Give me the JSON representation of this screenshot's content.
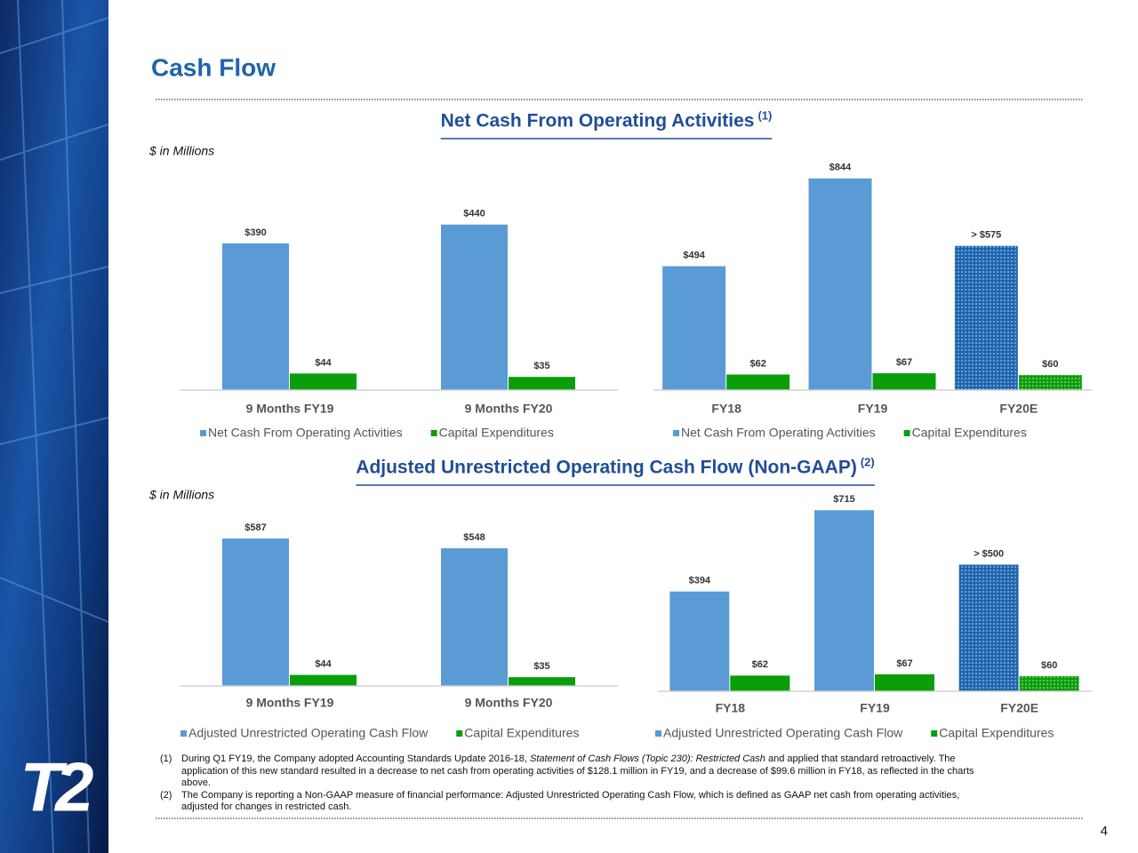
{
  "slide": {
    "title": "Cash Flow",
    "page": "4",
    "logo": "T2"
  },
  "sections": [
    {
      "heading": "Net Cash From Operating Activities",
      "note": "(1)",
      "unit": "$ in Millions"
    },
    {
      "heading": "Adjusted Unrestricted Operating Cash Flow (Non-GAAP)",
      "note": "(2)",
      "unit": "$ in Millions"
    }
  ],
  "footnotes": [
    {
      "marker": "(1)",
      "parts": [
        "During Q1 FY19, the Company adopted Accounting Standards Update 2016-18, ",
        "Statement of Cash Flows (Topic 230): Restricted Cash",
        " and applied that standard retroactively. The application of this new standard resulted in a decrease to net cash from operating activities of $128.1 million in FY19, and a decrease of $99.6 million in FY18, as reflected in the charts above."
      ]
    },
    {
      "marker": "(2)",
      "parts": [
        "The Company is reporting a Non-GAAP measure of financial performance: Adjusted Unrestricted Operating Cash Flow, which is defined as GAAP net cash from operating activities, adjusted for changes in restricted cash."
      ]
    }
  ],
  "chart_data": [
    {
      "type": "bar",
      "categories": [
        "9 Months FY19",
        "9 Months FY20"
      ],
      "ylim": [
        0,
        600
      ],
      "series": [
        {
          "name": "Net Cash From Operating Activities",
          "color": "#5b9bd5",
          "values": [
            390,
            440
          ],
          "value_labels": [
            "$390",
            "$440"
          ]
        },
        {
          "name": "Capital Expenditures",
          "color": "#0a9e0a",
          "values": [
            44,
            35
          ],
          "value_labels": [
            "$44",
            "$35"
          ]
        }
      ]
    },
    {
      "type": "bar",
      "categories": [
        "FY18",
        "FY19",
        "FY20E"
      ],
      "ylim": [
        0,
        900
      ],
      "series": [
        {
          "name": "Net Cash From Operating Activities",
          "color": "#5b9bd5",
          "values": [
            494,
            844,
            575
          ],
          "value_labels": [
            "$494",
            "$844",
            "> $575"
          ],
          "dotted": [
            false,
            false,
            true
          ]
        },
        {
          "name": "Capital Expenditures",
          "color": "#0a9e0a",
          "values": [
            62,
            67,
            60
          ],
          "value_labels": [
            "$62",
            "$67",
            "$60"
          ],
          "dotted": [
            false,
            false,
            true
          ]
        }
      ]
    },
    {
      "type": "bar",
      "categories": [
        "9 Months FY19",
        "9 Months FY20"
      ],
      "ylim": [
        0,
        750
      ],
      "series": [
        {
          "name": "Adjusted Unrestricted Operating Cash Flow",
          "color": "#5b9bd5",
          "values": [
            587,
            548
          ],
          "value_labels": [
            "$587",
            "$548"
          ]
        },
        {
          "name": "Capital Expenditures",
          "color": "#0a9e0a",
          "values": [
            44,
            35
          ],
          "value_labels": [
            "$44",
            "$35"
          ]
        }
      ]
    },
    {
      "type": "bar",
      "categories": [
        "FY18",
        "FY19",
        "FY20E"
      ],
      "ylim": [
        0,
        800
      ],
      "series": [
        {
          "name": "Adjusted Unrestricted Operating Cash Flow",
          "color": "#5b9bd5",
          "values": [
            394,
            715,
            500
          ],
          "value_labels": [
            "$394",
            "$715",
            "> $500"
          ],
          "dotted": [
            false,
            false,
            true
          ]
        },
        {
          "name": "Capital Expenditures",
          "color": "#0a9e0a",
          "values": [
            62,
            67,
            60
          ],
          "value_labels": [
            "$62",
            "$67",
            "$60"
          ],
          "dotted": [
            false,
            false,
            true
          ]
        }
      ]
    }
  ]
}
